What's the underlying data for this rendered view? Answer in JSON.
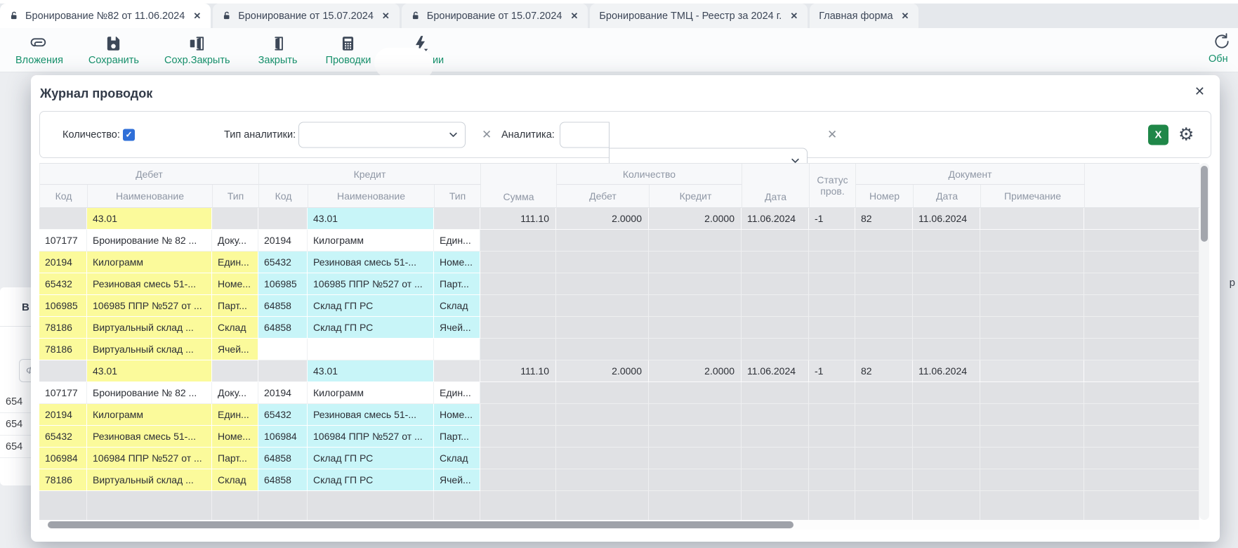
{
  "tab_bar": {
    "tabs": [
      {
        "label": "Бронирование №82 от 11.06.2024",
        "locked": true,
        "active": true
      },
      {
        "label": "Бронирование от 15.07.2024",
        "locked": true,
        "active": false
      },
      {
        "label": "Бронирование от 15.07.2024",
        "locked": true,
        "active": false
      },
      {
        "label": "Бронирование ТМЦ - Реестр за 2024 г.",
        "locked": false,
        "active": false
      },
      {
        "label": "Главная форма",
        "locked": false,
        "active": false
      }
    ],
    "close_glyph": "✕"
  },
  "toolbar": {
    "buttons": [
      {
        "label": "Вложения",
        "icon": "paperclip-icon"
      },
      {
        "label": "Сохранить",
        "icon": "save-icon"
      },
      {
        "label": "Сохр.Закрыть",
        "icon": "save-close-icon"
      },
      {
        "label": "Закрыть",
        "icon": "door-icon"
      },
      {
        "label": "Проводки",
        "icon": "calculator-icon"
      },
      {
        "label": "Операции",
        "icon": "lightning-icon"
      }
    ],
    "refresh_label": "Обн"
  },
  "page_background": {
    "panel_letter": "В",
    "filter_placeholder": "Фи",
    "list_values": [
      "654",
      "654",
      "654"
    ],
    "right_fragment": "р"
  },
  "dialog": {
    "title": "Журнал проводок",
    "close_glyph": "✕",
    "filter_bar": {
      "quantity_label": "Количество:",
      "quantity_checked": true,
      "check_glyph": "✓",
      "analytics_type_label": "Тип аналитики:",
      "analytics_type_value": "",
      "analytics_label": "Аналитика:",
      "analytics_value": "",
      "clear_glyph": "✕",
      "excel_label": "X",
      "gear_glyph": "⚙"
    },
    "table": {
      "groups": {
        "debit": "Дебет",
        "credit": "Кредит",
        "quantity": "Количество",
        "document": "Документ"
      },
      "columns": [
        "Код",
        "Наименование",
        "Тип",
        "Код",
        "Наименование",
        "Тип",
        "Сумма",
        "Дебет",
        "Кредит",
        "Дата",
        "Статус пров.",
        "Номер",
        "Дата",
        "Примечание"
      ],
      "rows": [
        {
          "type": "summary",
          "debit_name": "43.01",
          "credit_name": "43.01",
          "amount": "111.10",
          "qty_debit": "2.0000",
          "qty_credit": "2.0000",
          "date": "11.06.2024",
          "status": "-1",
          "doc_number": "82",
          "doc_date": "11.06.2024"
        },
        {
          "type": "detail",
          "highlight": false,
          "debit_code": "107177",
          "debit_name": "Бронирование № 82 ...",
          "debit_type": "Доку...",
          "credit_code": "20194",
          "credit_name": "Килограмм",
          "credit_type": "Един..."
        },
        {
          "type": "detail",
          "highlight": true,
          "debit_code": "20194",
          "debit_name": "Килограмм",
          "debit_type": "Един...",
          "credit_code": "65432",
          "credit_name": "Резиновая смесь 51-...",
          "credit_type": "Номе..."
        },
        {
          "type": "detail",
          "highlight": true,
          "debit_code": "65432",
          "debit_name": "Резиновая смесь 51-...",
          "debit_type": "Номе...",
          "credit_code": "106985",
          "credit_name": "106985 ППР №527 от ...",
          "credit_type": "Парт..."
        },
        {
          "type": "detail",
          "highlight": true,
          "debit_code": "106985",
          "debit_name": "106985 ППР №527 от ...",
          "debit_type": "Парт...",
          "credit_code": "64858",
          "credit_name": "Склад ГП РС",
          "credit_type": "Склад"
        },
        {
          "type": "detail",
          "highlight": true,
          "debit_code": "78186",
          "debit_name": "Виртуальный склад ...",
          "debit_type": "Склад",
          "credit_code": "64858",
          "credit_name": "Склад ГП РС",
          "credit_type": "Ячей..."
        },
        {
          "type": "detail",
          "highlight": true,
          "credit_blank": true,
          "debit_code": "78186",
          "debit_name": "Виртуальный склад ...",
          "debit_type": "Ячей...",
          "credit_code": "",
          "credit_name": "",
          "credit_type": ""
        },
        {
          "type": "summary",
          "debit_name": "43.01",
          "credit_name": "43.01",
          "amount": "111.10",
          "qty_debit": "2.0000",
          "qty_credit": "2.0000",
          "date": "11.06.2024",
          "status": "-1",
          "doc_number": "82",
          "doc_date": "11.06.2024"
        },
        {
          "type": "detail",
          "highlight": false,
          "debit_code": "107177",
          "debit_name": "Бронирование № 82 ...",
          "debit_type": "Доку...",
          "credit_code": "20194",
          "credit_name": "Килограмм",
          "credit_type": "Един..."
        },
        {
          "type": "detail",
          "highlight": true,
          "debit_code": "20194",
          "debit_name": "Килограмм",
          "debit_type": "Един...",
          "credit_code": "65432",
          "credit_name": "Резиновая смесь 51-...",
          "credit_type": "Номе..."
        },
        {
          "type": "detail",
          "highlight": true,
          "debit_code": "65432",
          "debit_name": "Резиновая смесь 51-...",
          "debit_type": "Номе...",
          "credit_code": "106984",
          "credit_name": "106984 ППР №527 от ...",
          "credit_type": "Парт..."
        },
        {
          "type": "detail",
          "highlight": true,
          "debit_code": "106984",
          "debit_name": "106984 ППР №527 от ...",
          "debit_type": "Парт...",
          "credit_code": "64858",
          "credit_name": "Склад ГП РС",
          "credit_type": "Склад"
        },
        {
          "type": "detail",
          "highlight": true,
          "debit_code": "78186",
          "debit_name": "Виртуальный склад ...",
          "debit_type": "Склад",
          "credit_code": "64858",
          "credit_name": "Склад ГП РС",
          "credit_type": "Ячей..."
        }
      ]
    },
    "colors": {
      "debit_highlight": "#fbfa9b",
      "credit_highlight": "#c8f5f8",
      "summary_row": "#e3e4e7",
      "accent_green": "#17916c",
      "excel_green": "#1f8748",
      "checkbox_blue": "#2f6fd8"
    }
  }
}
